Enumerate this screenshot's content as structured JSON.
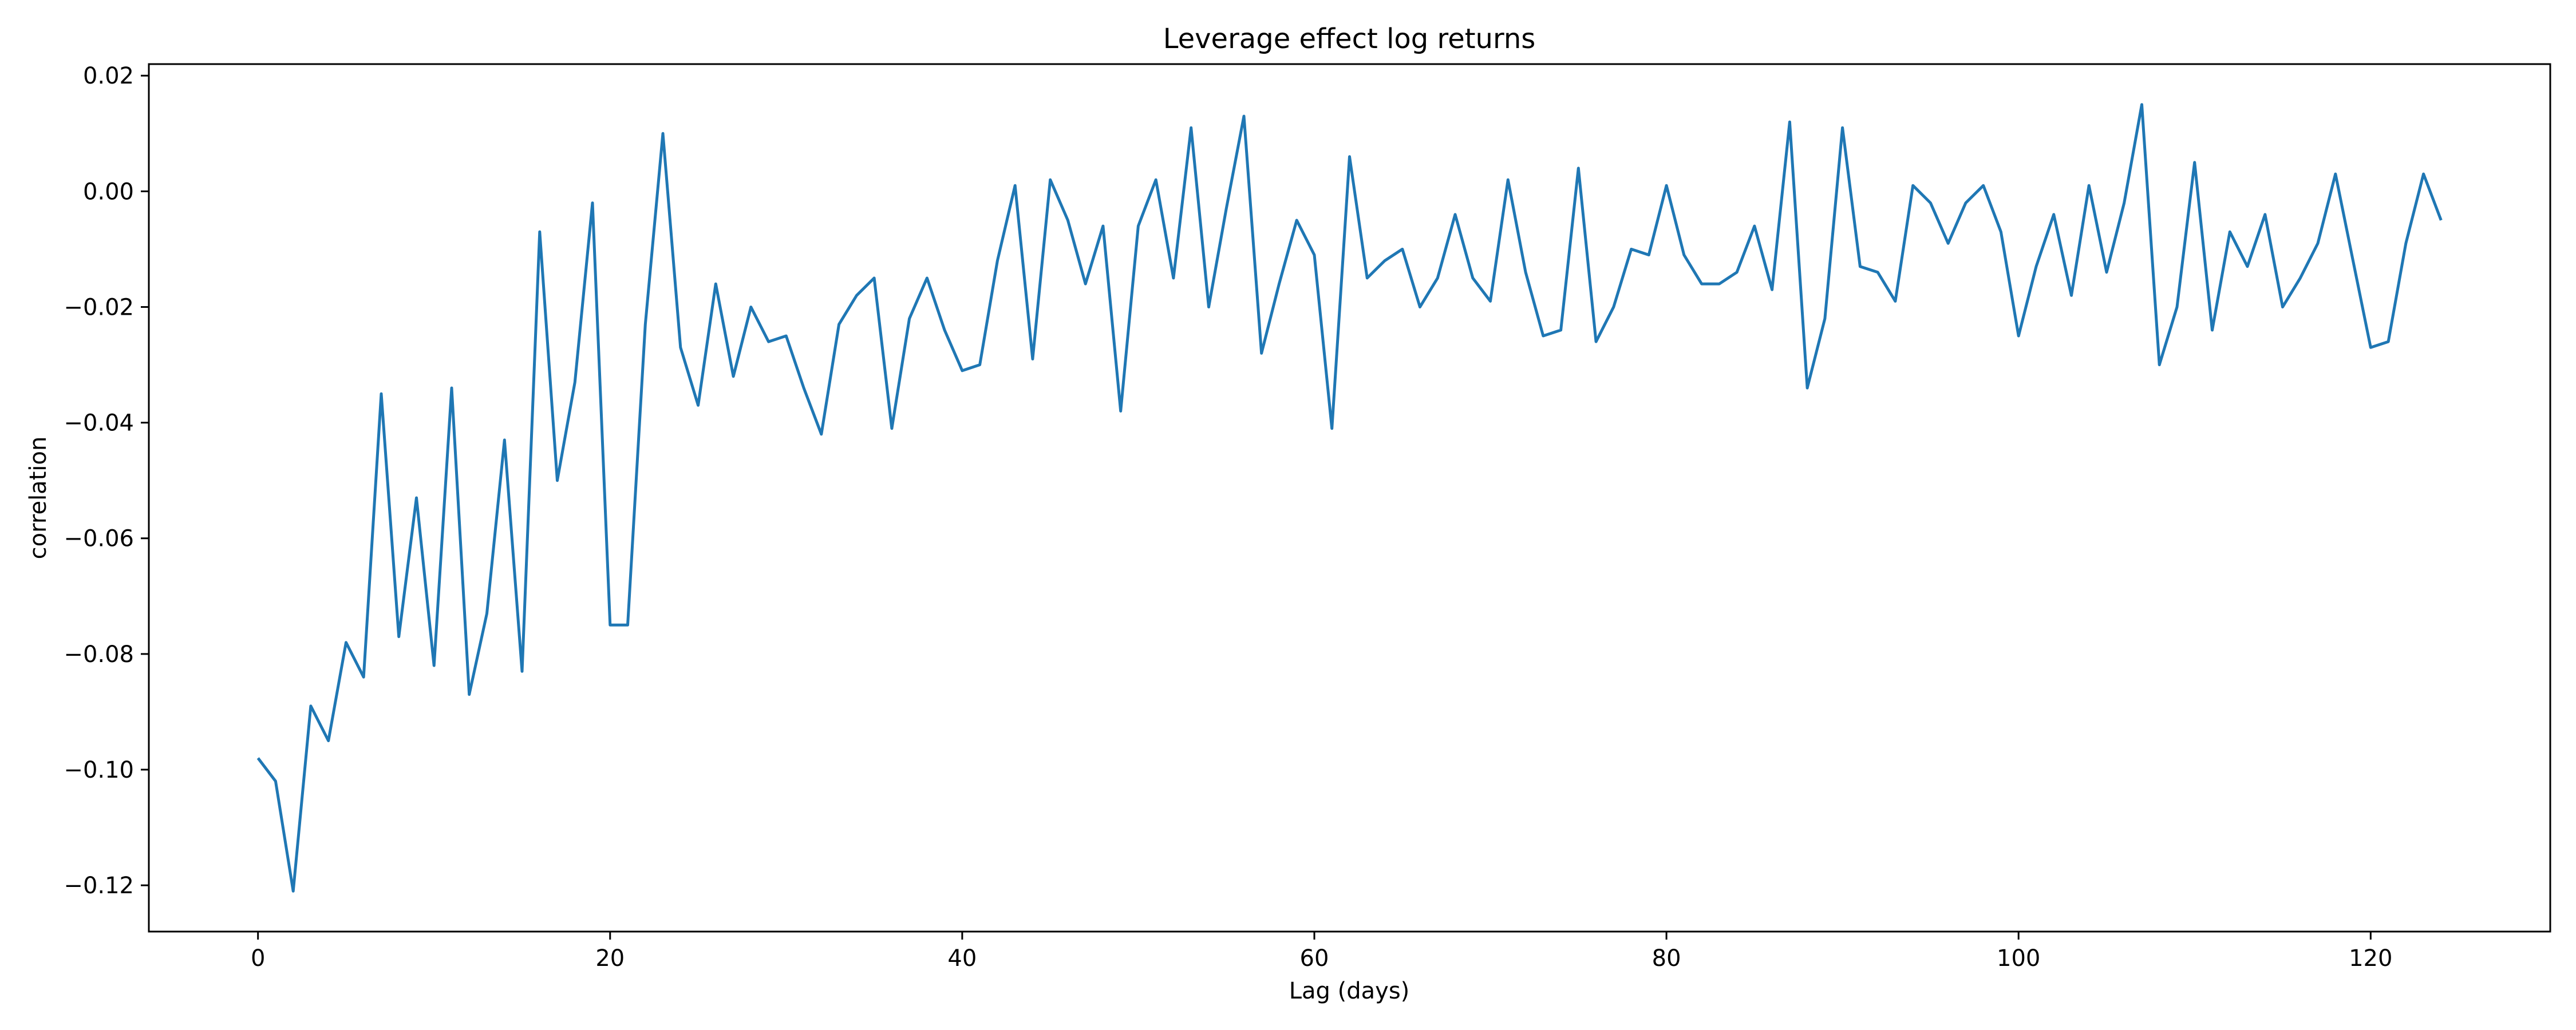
{
  "chart_data": {
    "type": "line",
    "title": "Leverage effect log returns",
    "xlabel": "Lag (days)",
    "ylabel": "correlation",
    "xlim": [
      -6.2,
      130.2
    ],
    "ylim": [
      -0.128,
      0.022
    ],
    "xticks": [
      0,
      20,
      40,
      60,
      80,
      100,
      120
    ],
    "xtick_labels": [
      "0",
      "20",
      "40",
      "60",
      "80",
      "100",
      "120"
    ],
    "yticks": [
      -0.12,
      -0.1,
      -0.08,
      -0.06,
      -0.04,
      -0.02,
      0.0,
      0.02
    ],
    "ytick_labels": [
      "−0.12",
      "−0.10",
      "−0.08",
      "−0.06",
      "−0.04",
      "−0.02",
      "0.00",
      "0.02"
    ],
    "grid": false,
    "series": [
      {
        "color": "#1f77b4",
        "x": [
          0,
          1,
          2,
          3,
          4,
          5,
          6,
          7,
          8,
          9,
          10,
          11,
          12,
          13,
          14,
          15,
          16,
          17,
          18,
          19,
          20,
          21,
          22,
          23,
          24,
          25,
          26,
          27,
          28,
          29,
          30,
          31,
          32,
          33,
          34,
          35,
          36,
          37,
          38,
          39,
          40,
          41,
          42,
          43,
          44,
          45,
          46,
          47,
          48,
          49,
          50,
          51,
          52,
          53,
          54,
          55,
          56,
          57,
          58,
          59,
          60,
          61,
          62,
          63,
          64,
          65,
          66,
          67,
          68,
          69,
          70,
          71,
          72,
          73,
          74,
          75,
          76,
          77,
          78,
          79,
          80,
          81,
          82,
          83,
          84,
          85,
          86,
          87,
          88,
          89,
          90,
          91,
          92,
          93,
          94,
          95,
          96,
          97,
          98,
          99,
          100,
          101,
          102,
          103,
          104,
          105,
          106,
          107,
          108,
          109,
          110,
          111,
          112,
          113,
          114,
          115,
          116,
          117,
          118,
          119,
          120,
          121,
          122,
          123,
          124
        ],
        "y": [
          -0.098,
          -0.102,
          -0.121,
          -0.089,
          -0.095,
          -0.078,
          -0.084,
          -0.035,
          -0.077,
          -0.053,
          -0.082,
          -0.034,
          -0.087,
          -0.073,
          -0.043,
          -0.083,
          -0.007,
          -0.05,
          -0.033,
          -0.002,
          -0.075,
          -0.075,
          -0.023,
          0.01,
          -0.027,
          -0.037,
          -0.016,
          -0.032,
          -0.02,
          -0.026,
          -0.025,
          -0.034,
          -0.042,
          -0.023,
          -0.018,
          -0.015,
          -0.041,
          -0.022,
          -0.015,
          -0.024,
          -0.031,
          -0.03,
          -0.012,
          0.001,
          -0.029,
          0.002,
          -0.005,
          -0.016,
          -0.006,
          -0.038,
          -0.006,
          0.002,
          -0.015,
          0.011,
          -0.02,
          -0.003,
          0.013,
          -0.028,
          -0.016,
          -0.005,
          -0.011,
          -0.041,
          0.006,
          -0.015,
          -0.012,
          -0.01,
          -0.02,
          -0.015,
          -0.004,
          -0.015,
          -0.019,
          0.002,
          -0.014,
          -0.025,
          -0.024,
          0.004,
          -0.026,
          -0.02,
          -0.01,
          -0.011,
          0.001,
          -0.011,
          -0.016,
          -0.016,
          -0.014,
          -0.006,
          -0.017,
          0.012,
          -0.034,
          -0.022,
          0.011,
          -0.013,
          -0.014,
          -0.019,
          0.001,
          -0.002,
          -0.009,
          -0.002,
          0.001,
          -0.007,
          -0.025,
          -0.013,
          -0.004,
          -0.018,
          0.001,
          -0.014,
          -0.002,
          0.015,
          -0.03,
          -0.02,
          0.005,
          -0.024,
          -0.007,
          -0.013,
          -0.004,
          -0.02,
          -0.015,
          -0.009,
          0.003,
          -0.012,
          -0.027,
          -0.026,
          -0.009,
          0.003,
          -0.005
        ]
      }
    ]
  }
}
